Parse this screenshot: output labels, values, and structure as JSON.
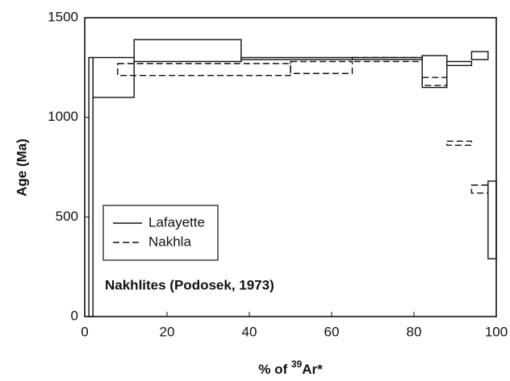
{
  "chart_data": {
    "type": "age_spectrum",
    "y_label": "Age (Ma)",
    "x_label": [
      "% of ",
      "39",
      "Ar*"
    ],
    "annotation": "Nakhlites (Podosek, 1973)",
    "xlim": [
      0,
      100
    ],
    "xticks": [
      0,
      20,
      40,
      60,
      80,
      100
    ],
    "ylim": [
      0,
      1500
    ],
    "yticks": [
      0,
      500,
      1000,
      1500
    ],
    "series": [
      {
        "name": "Lafayette",
        "color": "#111111",
        "dash": false,
        "bins": [
          1,
          2,
          12,
          38,
          82,
          88,
          94,
          98,
          100
        ],
        "high": [
          1300,
          1300,
          1390,
          1300,
          1310,
          1280,
          1330,
          680
        ],
        "low": [
          0,
          1100,
          1280,
          1290,
          1150,
          1260,
          1290,
          290
        ]
      },
      {
        "name": "Nakhla",
        "color": "#111111",
        "dash": true,
        "bins": [
          8,
          50,
          65,
          82,
          88,
          94,
          98
        ],
        "high": [
          1270,
          1280,
          1300,
          1200,
          880,
          660
        ],
        "low": [
          1210,
          1220,
          1280,
          1160,
          860,
          620
        ]
      }
    ]
  }
}
